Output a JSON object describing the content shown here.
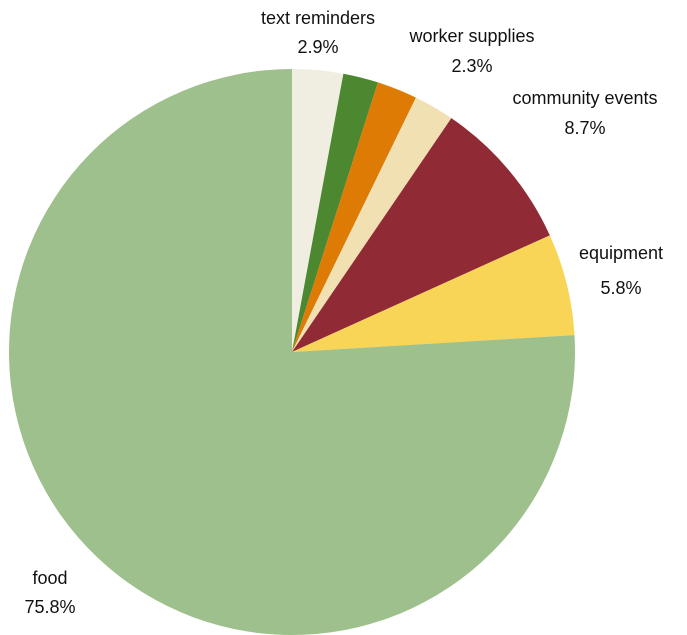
{
  "chart_data": {
    "type": "pie",
    "start_angle_deg": 0,
    "direction": "clockwise",
    "slices": [
      {
        "label": "text reminders",
        "value": 2.9,
        "value_label": "2.9%",
        "color": "#f0eee0",
        "show_label": true
      },
      {
        "label": "",
        "value": 2.0,
        "value_label": "",
        "color": "#4c8830",
        "show_label": false
      },
      {
        "label": "worker supplies",
        "value": 2.3,
        "value_label": "2.3%",
        "color": "#de7b05",
        "show_label": true
      },
      {
        "label": "",
        "value": 2.3,
        "value_label": "",
        "color": "#f1e0b1",
        "show_label": false
      },
      {
        "label": "community events",
        "value": 8.7,
        "value_label": "8.7%",
        "color": "#902b36",
        "show_label": true
      },
      {
        "label": "equipment",
        "value": 5.8,
        "value_label": "5.8%",
        "color": "#f8d556",
        "show_label": true
      },
      {
        "label": "food",
        "value": 75.8,
        "value_label": "75.8%",
        "color": "#9ec08c",
        "show_label": true
      }
    ]
  }
}
